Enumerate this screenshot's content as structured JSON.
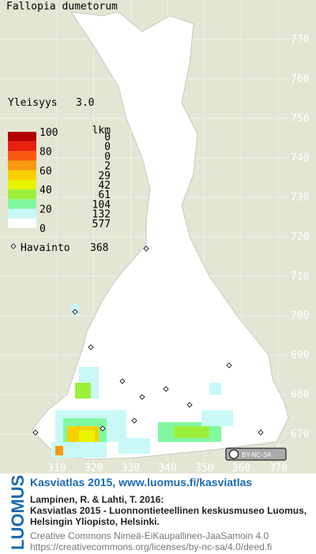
{
  "title": "Fallopia dumetorum",
  "frequency": {
    "label": "Yleisyys",
    "value": "3.0"
  },
  "legend": {
    "count_header": "lkm",
    "scale_labels": [
      100,
      80,
      60,
      40,
      20,
      0
    ],
    "classes": [
      {
        "color": "#b40000",
        "count": 0
      },
      {
        "color": "#e82010",
        "count": 0
      },
      {
        "color": "#f85a10",
        "count": 0
      },
      {
        "color": "#f89a10",
        "count": 2
      },
      {
        "color": "#f8d000",
        "count": 29
      },
      {
        "color": "#e8f400",
        "count": 42
      },
      {
        "color": "#9cf03c",
        "count": 61
      },
      {
        "color": "#80f8a0",
        "count": 104
      },
      {
        "color": "#c8f8f8",
        "count": 132
      },
      {
        "color": "#ffffff",
        "count": 577
      }
    ],
    "observation": {
      "label": "Havainto",
      "count": 368
    }
  },
  "grid": {
    "northing": [
      770,
      760,
      750,
      740,
      730,
      720,
      710,
      700,
      690,
      680,
      670
    ],
    "easting": [
      310,
      320,
      330,
      340,
      350,
      360,
      370
    ]
  },
  "license_badge": "BY-NC-SA",
  "footer": {
    "logo": "LUOMUS",
    "heading": "Kasviatlas 2015, www.luomus.fi/kasviatlas",
    "citation": [
      "Lampinen, R. & Lahti, T. 2016:",
      "Kasviatlas 2015 - Luonnontieteellinen keskusmuseo Luomus,",
      "Helsingin Yliopisto, Helsinki."
    ],
    "license": [
      "Creative Commons Nimeä-EiKaupallinen-JaaSamoin 4.0",
      "https://creativecommons.org/licenses/by-nc-sa/4.0/deed.fi"
    ]
  }
}
